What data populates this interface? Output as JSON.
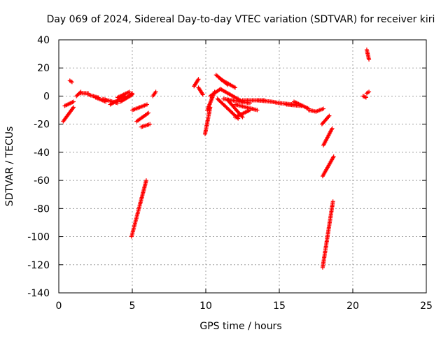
{
  "chart_data": {
    "type": "scatter",
    "title": "Day 069 of 2024, Sidereal Day-to-day VTEC variation (SDTVAR) for receiver kiri",
    "xlabel": "GPS time / hours",
    "ylabel": "SDTVAR / TECUs",
    "xlim": [
      0,
      25
    ],
    "ylim": [
      -140,
      40
    ],
    "xticks": [
      0,
      5,
      10,
      15,
      20,
      25
    ],
    "xtick_labels": [
      "0",
      "5",
      "10",
      "15",
      "20",
      "25"
    ],
    "yticks": [
      40,
      20,
      0,
      -20,
      -40,
      -60,
      -80,
      -100,
      -120,
      -140
    ],
    "ytick_labels": [
      "40",
      "20",
      "0",
      "-20",
      "-40",
      "-60",
      "-80",
      "-100",
      "-120",
      "-140"
    ],
    "grid": true,
    "marker": "plus",
    "color": "#ff0000",
    "segments": [
      {
        "x": [
          0.3,
          1.0
        ],
        "y": [
          -18,
          -8
        ]
      },
      {
        "x": [
          0.4,
          1.0
        ],
        "y": [
          -7,
          -4
        ]
      },
      {
        "x": [
          0.75,
          0.9
        ],
        "y": [
          11,
          10
        ]
      },
      {
        "x": [
          1.2,
          1.5
        ],
        "y": [
          0,
          3
        ]
      },
      {
        "x": [
          1.5,
          2.0
        ],
        "y": [
          2,
          2
        ]
      },
      {
        "x": [
          2.0,
          2.7
        ],
        "y": [
          1,
          -1
        ]
      },
      {
        "x": [
          2.5,
          3.2
        ],
        "y": [
          -1,
          -4
        ]
      },
      {
        "x": [
          3.0,
          4.0
        ],
        "y": [
          -2,
          -5
        ]
      },
      {
        "x": [
          3.5,
          4.5
        ],
        "y": [
          -6,
          0
        ]
      },
      {
        "x": [
          4.0,
          4.8
        ],
        "y": [
          -1,
          3
        ]
      },
      {
        "x": [
          4.2,
          5.0
        ],
        "y": [
          -4,
          1
        ]
      },
      {
        "x": [
          4.5,
          5.0
        ],
        "y": [
          -2,
          2
        ]
      },
      {
        "x": [
          5.0,
          5.5
        ],
        "y": [
          -10,
          -8
        ]
      },
      {
        "x": [
          5.5,
          6.0
        ],
        "y": [
          -8,
          -6
        ]
      },
      {
        "x": [
          4.95,
          5.95
        ],
        "y": [
          -100,
          -60
        ]
      },
      {
        "x": [
          5.3,
          6.1
        ],
        "y": [
          -18,
          -12
        ]
      },
      {
        "x": [
          5.6,
          6.2
        ],
        "y": [
          -22,
          -20
        ]
      },
      {
        "x": [
          6.4,
          6.6
        ],
        "y": [
          0,
          3
        ]
      },
      {
        "x": [
          9.2,
          9.5
        ],
        "y": [
          7,
          12
        ]
      },
      {
        "x": [
          9.5,
          9.8
        ],
        "y": [
          6,
          1
        ]
      },
      {
        "x": [
          9.95,
          10.3
        ],
        "y": [
          -27,
          -8
        ]
      },
      {
        "x": [
          10.1,
          10.6
        ],
        "y": [
          -10,
          3
        ]
      },
      {
        "x": [
          10.3,
          11.0
        ],
        "y": [
          0,
          5
        ]
      },
      {
        "x": [
          10.7,
          11.5
        ],
        "y": [
          15,
          8
        ]
      },
      {
        "x": [
          10.8,
          12.2
        ],
        "y": [
          -2,
          -16
        ]
      },
      {
        "x": [
          11.0,
          12.5
        ],
        "y": [
          5,
          -4
        ]
      },
      {
        "x": [
          11.0,
          12.0
        ],
        "y": [
          12,
          6
        ]
      },
      {
        "x": [
          11.5,
          12.5
        ],
        "y": [
          -3,
          -15
        ]
      },
      {
        "x": [
          11.2,
          13.0
        ],
        "y": [
          -2,
          -5
        ]
      },
      {
        "x": [
          12.0,
          13.0
        ],
        "y": [
          -15,
          -10
        ]
      },
      {
        "x": [
          12.0,
          13.5
        ],
        "y": [
          -6,
          -10
        ]
      },
      {
        "x": [
          12.5,
          14.0
        ],
        "y": [
          -3,
          -3
        ]
      },
      {
        "x": [
          13.5,
          14.5
        ],
        "y": [
          -3,
          -4
        ]
      },
      {
        "x": [
          14.5,
          15.0
        ],
        "y": [
          -4,
          -5
        ]
      },
      {
        "x": [
          15.0,
          16.0
        ],
        "y": [
          -5,
          -6
        ]
      },
      {
        "x": [
          15.5,
          16.5
        ],
        "y": [
          -6,
          -7
        ]
      },
      {
        "x": [
          16.0,
          17.0
        ],
        "y": [
          -4,
          -9
        ]
      },
      {
        "x": [
          17.0,
          17.5
        ],
        "y": [
          -10,
          -11
        ]
      },
      {
        "x": [
          17.5,
          18.0
        ],
        "y": [
          -11,
          -9
        ]
      },
      {
        "x": [
          17.9,
          18.4
        ],
        "y": [
          -20,
          -14
        ]
      },
      {
        "x": [
          18.0,
          18.6
        ],
        "y": [
          -35,
          -23
        ]
      },
      {
        "x": [
          17.95,
          18.7
        ],
        "y": [
          -57,
          -43
        ]
      },
      {
        "x": [
          17.95,
          18.65
        ],
        "y": [
          -122,
          -75
        ]
      },
      {
        "x": [
          20.7,
          20.9
        ],
        "y": [
          0,
          -1
        ]
      },
      {
        "x": [
          20.95,
          21.1
        ],
        "y": [
          2,
          3
        ]
      },
      {
        "x": [
          20.95,
          21.1
        ],
        "y": [
          33,
          26
        ]
      }
    ]
  }
}
